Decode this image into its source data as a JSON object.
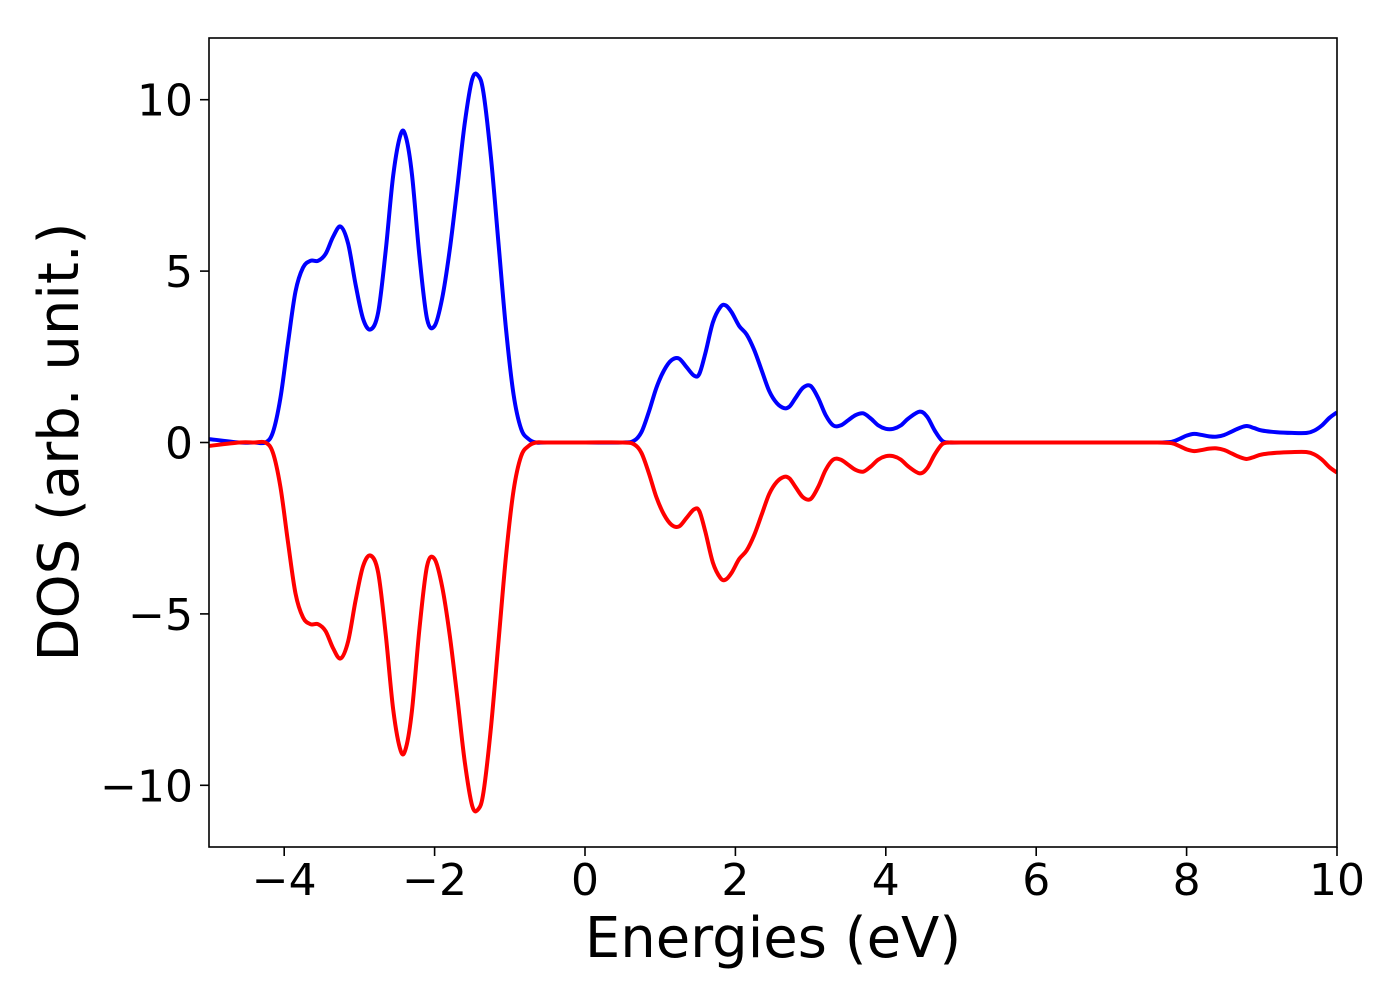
{
  "chart_data": {
    "type": "line",
    "title": "",
    "xlabel": "Energies (eV)",
    "ylabel": "DOS (arb. unit.)",
    "xlim": [
      -5,
      10
    ],
    "ylim": [
      -11.8,
      11.8
    ],
    "x_ticks": [
      -4,
      -2,
      0,
      2,
      4,
      6,
      8,
      10
    ],
    "x_tick_labels": [
      "−4",
      "−2",
      "0",
      "2",
      "4",
      "6",
      "8",
      "10"
    ],
    "y_ticks": [
      -10,
      -5,
      0,
      5,
      10
    ],
    "y_tick_labels": [
      "−10",
      "−5",
      "0",
      "5",
      "10"
    ],
    "grid": false,
    "series": [
      {
        "color": "#0000ff",
        "x": [
          -5.0,
          -4.6,
          -4.4,
          -4.25,
          -4.15,
          -4.05,
          -3.95,
          -3.85,
          -3.75,
          -3.65,
          -3.55,
          -3.45,
          -3.35,
          -3.25,
          -3.15,
          -3.05,
          -2.95,
          -2.85,
          -2.75,
          -2.65,
          -2.55,
          -2.45,
          -2.38,
          -2.3,
          -2.2,
          -2.1,
          -2.0,
          -1.9,
          -1.8,
          -1.7,
          -1.6,
          -1.5,
          -1.42,
          -1.35,
          -1.25,
          -1.15,
          -1.05,
          -0.95,
          -0.85,
          -0.75,
          -0.65,
          -0.5,
          0.0,
          0.5,
          0.65,
          0.75,
          0.85,
          0.95,
          1.05,
          1.15,
          1.25,
          1.35,
          1.45,
          1.52,
          1.6,
          1.7,
          1.8,
          1.87,
          1.95,
          2.05,
          2.15,
          2.25,
          2.35,
          2.45,
          2.55,
          2.65,
          2.72,
          2.8,
          2.9,
          3.0,
          3.1,
          3.2,
          3.3,
          3.4,
          3.5,
          3.6,
          3.7,
          3.8,
          3.9,
          4.0,
          4.1,
          4.2,
          4.3,
          4.45,
          4.55,
          4.65,
          4.75,
          4.85,
          5.0,
          6.0,
          7.0,
          7.6,
          7.8,
          7.9,
          8.0,
          8.1,
          8.2,
          8.3,
          8.4,
          8.5,
          8.6,
          8.7,
          8.8,
          8.9,
          9.0,
          9.2,
          9.4,
          9.6,
          9.7,
          9.8,
          9.9,
          10.0
        ],
        "y": [
          0.1,
          0.0,
          0.0,
          0.0,
          0.3,
          1.3,
          2.9,
          4.4,
          5.1,
          5.3,
          5.3,
          5.5,
          6.0,
          6.3,
          5.8,
          4.6,
          3.6,
          3.3,
          3.8,
          5.6,
          7.8,
          9.0,
          8.9,
          7.8,
          5.4,
          3.6,
          3.4,
          4.2,
          5.6,
          7.4,
          9.3,
          10.6,
          10.7,
          10.2,
          8.3,
          5.8,
          3.3,
          1.4,
          0.4,
          0.1,
          0.0,
          0.0,
          0.0,
          0.0,
          0.05,
          0.3,
          0.9,
          1.6,
          2.1,
          2.4,
          2.45,
          2.2,
          1.95,
          2.0,
          2.6,
          3.5,
          3.95,
          4.0,
          3.8,
          3.4,
          3.15,
          2.7,
          2.1,
          1.5,
          1.15,
          1.0,
          1.05,
          1.3,
          1.6,
          1.65,
          1.3,
          0.8,
          0.5,
          0.5,
          0.65,
          0.8,
          0.85,
          0.7,
          0.5,
          0.4,
          0.4,
          0.5,
          0.7,
          0.9,
          0.75,
          0.35,
          0.05,
          0.0,
          0.0,
          0.0,
          0.0,
          0.0,
          0.02,
          0.1,
          0.2,
          0.25,
          0.22,
          0.18,
          0.17,
          0.22,
          0.32,
          0.42,
          0.48,
          0.42,
          0.35,
          0.3,
          0.28,
          0.28,
          0.35,
          0.5,
          0.72,
          0.88
        ]
      },
      {
        "color": "#ff0000",
        "x": [
          -5.0,
          -4.6,
          -4.4,
          -4.25,
          -4.15,
          -4.05,
          -3.95,
          -3.85,
          -3.75,
          -3.65,
          -3.55,
          -3.45,
          -3.35,
          -3.25,
          -3.15,
          -3.05,
          -2.95,
          -2.85,
          -2.75,
          -2.65,
          -2.55,
          -2.45,
          -2.38,
          -2.3,
          -2.2,
          -2.1,
          -2.0,
          -1.9,
          -1.8,
          -1.7,
          -1.6,
          -1.5,
          -1.42,
          -1.35,
          -1.25,
          -1.15,
          -1.05,
          -0.95,
          -0.85,
          -0.75,
          -0.65,
          -0.5,
          0.0,
          0.5,
          0.65,
          0.75,
          0.85,
          0.95,
          1.05,
          1.15,
          1.25,
          1.35,
          1.45,
          1.52,
          1.6,
          1.7,
          1.8,
          1.87,
          1.95,
          2.05,
          2.15,
          2.25,
          2.35,
          2.45,
          2.55,
          2.65,
          2.72,
          2.8,
          2.9,
          3.0,
          3.1,
          3.2,
          3.3,
          3.4,
          3.5,
          3.6,
          3.7,
          3.8,
          3.9,
          4.0,
          4.1,
          4.2,
          4.3,
          4.45,
          4.55,
          4.65,
          4.75,
          4.85,
          5.0,
          6.0,
          7.0,
          7.6,
          7.8,
          7.9,
          8.0,
          8.1,
          8.2,
          8.3,
          8.4,
          8.5,
          8.6,
          8.7,
          8.8,
          8.9,
          9.0,
          9.2,
          9.4,
          9.6,
          9.7,
          9.8,
          9.9,
          10.0
        ],
        "y": [
          -0.1,
          0.0,
          0.0,
          0.0,
          -0.3,
          -1.3,
          -2.9,
          -4.4,
          -5.1,
          -5.3,
          -5.3,
          -5.5,
          -6.0,
          -6.3,
          -5.8,
          -4.6,
          -3.6,
          -3.3,
          -3.8,
          -5.6,
          -7.8,
          -9.0,
          -8.9,
          -7.8,
          -5.4,
          -3.6,
          -3.4,
          -4.2,
          -5.6,
          -7.4,
          -9.3,
          -10.6,
          -10.7,
          -10.2,
          -8.3,
          -5.8,
          -3.3,
          -1.4,
          -0.4,
          -0.1,
          0.0,
          0.0,
          0.0,
          0.0,
          -0.05,
          -0.3,
          -0.9,
          -1.6,
          -2.1,
          -2.4,
          -2.45,
          -2.2,
          -1.95,
          -2.0,
          -2.6,
          -3.5,
          -3.95,
          -4.0,
          -3.8,
          -3.4,
          -3.15,
          -2.7,
          -2.1,
          -1.5,
          -1.15,
          -1.0,
          -1.05,
          -1.3,
          -1.6,
          -1.65,
          -1.3,
          -0.8,
          -0.5,
          -0.5,
          -0.65,
          -0.8,
          -0.85,
          -0.7,
          -0.5,
          -0.4,
          -0.4,
          -0.5,
          -0.7,
          -0.9,
          -0.75,
          -0.35,
          -0.05,
          0.0,
          0.0,
          0.0,
          0.0,
          0.0,
          -0.02,
          -0.1,
          -0.2,
          -0.25,
          -0.22,
          -0.18,
          -0.17,
          -0.22,
          -0.32,
          -0.42,
          -0.48,
          -0.42,
          -0.35,
          -0.3,
          -0.28,
          -0.28,
          -0.35,
          -0.5,
          -0.72,
          -0.88
        ]
      }
    ]
  }
}
